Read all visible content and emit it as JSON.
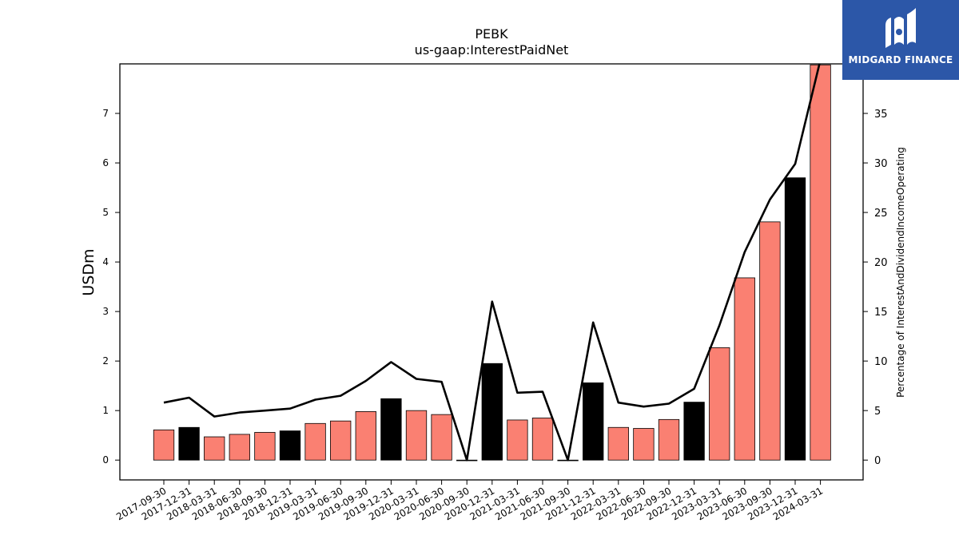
{
  "chart_data": {
    "type": "bar",
    "title": "PEBK",
    "subtitle": "us-gaap:InterestPaidNet",
    "ylabel": "USDm",
    "y2label": "Percentage of InterestAndDividendIncomeOperating",
    "ylim": [
      -0.4,
      8.0
    ],
    "y2lim": [
      -2.0,
      40.0
    ],
    "yticks": [
      0,
      1,
      2,
      3,
      4,
      5,
      6,
      7
    ],
    "y2ticks": [
      0,
      5,
      10,
      15,
      20,
      25,
      30,
      35
    ],
    "grid": false,
    "categories": [
      "2017-09-30",
      "2017-12-31",
      "2018-03-31",
      "2018-06-30",
      "2018-09-30",
      "2018-12-31",
      "2019-03-31",
      "2019-06-30",
      "2019-09-30",
      "2019-12-31",
      "2020-03-31",
      "2020-06-30",
      "2020-09-30",
      "2020-12-31",
      "2021-03-31",
      "2021-06-30",
      "2021-09-30",
      "2021-12-31",
      "2022-03-31",
      "2022-06-30",
      "2022-09-30",
      "2022-12-31",
      "2023-03-31",
      "2023-06-30",
      "2023-09-30",
      "2023-12-31",
      "2024-03-31"
    ],
    "series": [
      {
        "type": "bar",
        "axis": "left",
        "values": [
          0.61,
          0.66,
          0.47,
          0.52,
          0.56,
          0.59,
          0.74,
          0.79,
          0.98,
          1.24,
          1.0,
          0.92,
          0.0,
          1.95,
          0.81,
          0.85,
          0.0,
          1.56,
          0.66,
          0.64,
          0.82,
          1.17,
          2.27,
          3.68,
          4.81,
          5.7,
          7.98
        ],
        "colors": [
          "#fa8072",
          "#000000",
          "#fa8072",
          "#fa8072",
          "#fa8072",
          "#000000",
          "#fa8072",
          "#fa8072",
          "#fa8072",
          "#000000",
          "#fa8072",
          "#fa8072",
          "#fa8072",
          "#000000",
          "#fa8072",
          "#fa8072",
          "#fa8072",
          "#000000",
          "#fa8072",
          "#fa8072",
          "#fa8072",
          "#000000",
          "#fa8072",
          "#fa8072",
          "#fa8072",
          "#000000",
          "#fa8072"
        ]
      },
      {
        "type": "line",
        "axis": "right",
        "color": "#000000",
        "values": [
          5.8,
          6.3,
          4.4,
          4.8,
          5.0,
          5.2,
          6.1,
          6.5,
          8.0,
          9.9,
          8.2,
          7.9,
          0.0,
          16.0,
          6.8,
          6.9,
          0.0,
          13.9,
          5.8,
          5.4,
          5.7,
          7.2,
          13.6,
          21.0,
          26.3,
          29.9,
          40.4
        ]
      }
    ]
  },
  "logo": {
    "text": "MIDGARD FINANCE",
    "background": "#2c57a8"
  }
}
